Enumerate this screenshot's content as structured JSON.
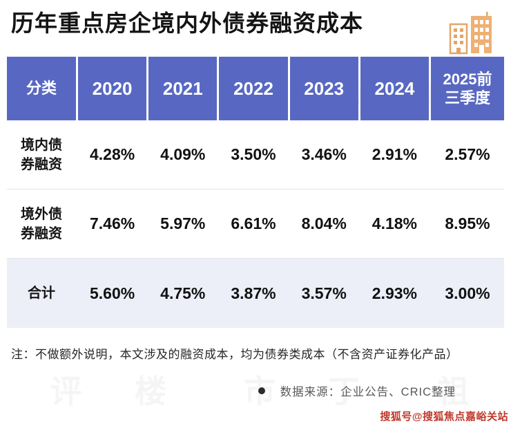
{
  "title": "历年重点房企境内外债券融资成本",
  "table": {
    "headers": [
      "分类",
      "2020",
      "2021",
      "2022",
      "2023",
      "2024",
      "2025前三季度"
    ],
    "rows": [
      {
        "label": "境内债券融资",
        "values": [
          "4.28%",
          "4.09%",
          "3.50%",
          "3.46%",
          "2.91%",
          "2.57%"
        ]
      },
      {
        "label": "境外债券融资",
        "values": [
          "7.46%",
          "5.97%",
          "6.61%",
          "8.04%",
          "4.18%",
          "8.95%"
        ]
      },
      {
        "label": "合计",
        "values": [
          "5.60%",
          "4.75%",
          "3.87%",
          "3.57%",
          "2.93%",
          "3.00%"
        ]
      }
    ]
  },
  "chart_data": {
    "type": "table",
    "title": "历年重点房企境内外债券融资成本",
    "categories": [
      "2020",
      "2021",
      "2022",
      "2023",
      "2024",
      "2025前三季度"
    ],
    "series": [
      {
        "name": "境内债券融资",
        "values": [
          4.28,
          4.09,
          3.5,
          3.46,
          2.91,
          2.57
        ]
      },
      {
        "name": "境外债券融资",
        "values": [
          7.46,
          5.97,
          6.61,
          8.04,
          4.18,
          8.95
        ]
      },
      {
        "name": "合计",
        "values": [
          5.6,
          4.75,
          3.87,
          3.57,
          2.93,
          3.0
        ]
      }
    ],
    "unit": "%"
  },
  "note": "注：不做额外说明，本文涉及的融资成本，均为债券类成本（不含资产证券化产品）",
  "source": "数据来源：企业公告、CRIC整理",
  "footer": "搜狐号@搜狐焦点嘉峪关站",
  "watermark_text": "丁祖昱评楼市",
  "colors": {
    "header_bg": "#5868c2",
    "highlight_row_bg": "#eceef8",
    "footer_red": "#c0392b",
    "icon_orange": "#e5a566"
  }
}
